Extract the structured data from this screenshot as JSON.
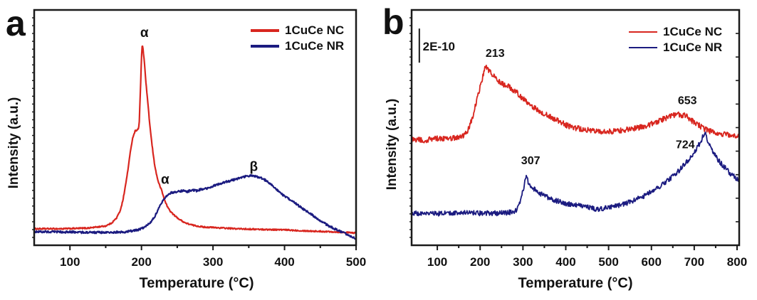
{
  "figure": {
    "background": "#ffffff",
    "text_color": "#111111",
    "axis_color": "#1a1a1a"
  },
  "chart_data": [
    {
      "type": "line",
      "panel_label": "a",
      "xlabel": "Temperature (°C)",
      "ylabel": "Intensity (a.u.)",
      "xlim": [
        50,
        500
      ],
      "x_major_ticks": [
        100,
        200,
        300,
        400,
        500
      ],
      "x_minor_ticks": [
        150,
        250,
        350,
        450
      ],
      "grid": false,
      "legend_position": "top-right",
      "legend": {
        "line_width": 4,
        "entries": [
          {
            "label": "1CuCe NC",
            "color": "#d8261f"
          },
          {
            "label": "1CuCe NR",
            "color": "#1b1b80"
          }
        ]
      },
      "annotations": [
        {
          "text": "α",
          "x": 204,
          "v": 0.885,
          "size": 19
        },
        {
          "text": "α",
          "x": 233,
          "v": 0.262,
          "size": 19
        },
        {
          "text": "β",
          "x": 357,
          "v": 0.315,
          "size": 19
        }
      ],
      "series": [
        {
          "name": "1CuCe NC",
          "color": "#d8261f",
          "width": 2.2,
          "noise": 0.0028,
          "points": [
            [
              50,
              0.07
            ],
            [
              90,
              0.07
            ],
            [
              125,
              0.073
            ],
            [
              150,
              0.082
            ],
            [
              158,
              0.094
            ],
            [
              165,
              0.115
            ],
            [
              170,
              0.145
            ],
            [
              174,
              0.19
            ],
            [
              178,
              0.26
            ],
            [
              182,
              0.34
            ],
            [
              185,
              0.41
            ],
            [
              188,
              0.46
            ],
            [
              191,
              0.485
            ],
            [
              196,
              0.495
            ],
            [
              197,
              0.53
            ],
            [
              199,
              0.7
            ],
            [
              200,
              0.8
            ],
            [
              201,
              0.852
            ],
            [
              202,
              0.84
            ],
            [
              204,
              0.78
            ],
            [
              206,
              0.7
            ],
            [
              209,
              0.6
            ],
            [
              212,
              0.5
            ],
            [
              215,
              0.42
            ],
            [
              218,
              0.35
            ],
            [
              221,
              0.3
            ],
            [
              224,
              0.265
            ],
            [
              228,
              0.235
            ],
            [
              232,
              0.195
            ],
            [
              236,
              0.165
            ],
            [
              241,
              0.142
            ],
            [
              247,
              0.124
            ],
            [
              254,
              0.108
            ],
            [
              262,
              0.094
            ],
            [
              272,
              0.085
            ],
            [
              285,
              0.078
            ],
            [
              300,
              0.0755
            ],
            [
              330,
              0.0705
            ],
            [
              365,
              0.0675
            ],
            [
              400,
              0.0655
            ],
            [
              435,
              0.0605
            ],
            [
              470,
              0.057
            ],
            [
              500,
              0.052
            ]
          ]
        },
        {
          "name": "1CuCe NR",
          "color": "#1b1b80",
          "width": 2.2,
          "noise": 0.0045,
          "points": [
            [
              50,
              0.058
            ],
            [
              100,
              0.056
            ],
            [
              150,
              0.054
            ],
            [
              175,
              0.056
            ],
            [
              190,
              0.062
            ],
            [
              200,
              0.07
            ],
            [
              207,
              0.082
            ],
            [
              213,
              0.1
            ],
            [
              219,
              0.125
            ],
            [
              224,
              0.155
            ],
            [
              229,
              0.185
            ],
            [
              234,
              0.208
            ],
            [
              239,
              0.22
            ],
            [
              245,
              0.226
            ],
            [
              252,
              0.228
            ],
            [
              258,
              0.232
            ],
            [
              264,
              0.228
            ],
            [
              270,
              0.234
            ],
            [
              277,
              0.232
            ],
            [
              284,
              0.238
            ],
            [
              291,
              0.24
            ],
            [
              298,
              0.248
            ],
            [
              306,
              0.258
            ],
            [
              314,
              0.266
            ],
            [
              322,
              0.272
            ],
            [
              330,
              0.279
            ],
            [
              338,
              0.287
            ],
            [
              346,
              0.293
            ],
            [
              353,
              0.296
            ],
            [
              360,
              0.293
            ],
            [
              368,
              0.285
            ],
            [
              376,
              0.272
            ],
            [
              384,
              0.252
            ],
            [
              391,
              0.232
            ],
            [
              398,
              0.212
            ],
            [
              406,
              0.196
            ],
            [
              414,
              0.18
            ],
            [
              422,
              0.163
            ],
            [
              430,
              0.147
            ],
            [
              438,
              0.13
            ],
            [
              446,
              0.112
            ],
            [
              454,
              0.097
            ],
            [
              462,
              0.082
            ],
            [
              470,
              0.07
            ],
            [
              478,
              0.058
            ],
            [
              486,
              0.047
            ],
            [
              493,
              0.037
            ],
            [
              500,
              0.026
            ]
          ]
        }
      ]
    },
    {
      "type": "line",
      "panel_label": "b",
      "xlabel": "Temperature (°C)",
      "ylabel": "Intensity (a.u.)",
      "xlim": [
        40,
        805
      ],
      "x_major_ticks": [
        100,
        200,
        300,
        400,
        500,
        600,
        700,
        800
      ],
      "x_minor_ticks": [
        150,
        250,
        350,
        450,
        550,
        650,
        750
      ],
      "grid": false,
      "legend_position": "top-right",
      "scale_bar": {
        "label": "2E-10",
        "x": 58,
        "v0": 0.776,
        "v1": 0.921,
        "text_x": 66,
        "text_v": 0.828
      },
      "legend": {
        "line_width": 2.5,
        "entries": [
          {
            "label": "1CuCe NC",
            "color": "#d8261f"
          },
          {
            "label": "1CuCe NR",
            "color": "#1b1b80"
          }
        ]
      },
      "annotations": [
        {
          "text": "213",
          "x": 235,
          "v": 0.8,
          "size": 16
        },
        {
          "text": "307",
          "x": 318,
          "v": 0.345,
          "size": 16
        },
        {
          "text": "653",
          "x": 684,
          "v": 0.6,
          "size": 16
        },
        {
          "text": "724",
          "x": 679,
          "v": 0.412,
          "size": 16
        }
      ],
      "series": [
        {
          "name": "1CuCe NC",
          "color": "#d8261f",
          "width": 1.8,
          "noise": 0.0115,
          "points": [
            [
              40,
              0.45
            ],
            [
              70,
              0.447
            ],
            [
              100,
              0.453
            ],
            [
              130,
              0.453
            ],
            [
              150,
              0.459
            ],
            [
              162,
              0.468
            ],
            [
              172,
              0.49
            ],
            [
              180,
              0.53
            ],
            [
              190,
              0.6
            ],
            [
              198,
              0.66
            ],
            [
              205,
              0.71
            ],
            [
              210,
              0.745
            ],
            [
              213,
              0.761
            ],
            [
              218,
              0.75
            ],
            [
              224,
              0.735
            ],
            [
              231,
              0.72
            ],
            [
              238,
              0.706
            ],
            [
              247,
              0.69
            ],
            [
              257,
              0.68
            ],
            [
              267,
              0.674
            ],
            [
              277,
              0.66
            ],
            [
              288,
              0.645
            ],
            [
              298,
              0.625
            ],
            [
              308,
              0.613
            ],
            [
              318,
              0.596
            ],
            [
              328,
              0.583
            ],
            [
              340,
              0.568
            ],
            [
              352,
              0.556
            ],
            [
              366,
              0.543
            ],
            [
              382,
              0.53
            ],
            [
              400,
              0.511
            ],
            [
              420,
              0.499
            ],
            [
              440,
              0.493
            ],
            [
              462,
              0.487
            ],
            [
              485,
              0.484
            ],
            [
              505,
              0.483
            ],
            [
              525,
              0.487
            ],
            [
              548,
              0.493
            ],
            [
              570,
              0.5
            ],
            [
              592,
              0.511
            ],
            [
              612,
              0.524
            ],
            [
              630,
              0.538
            ],
            [
              645,
              0.55
            ],
            [
              658,
              0.556
            ],
            [
              670,
              0.553
            ],
            [
              682,
              0.55
            ],
            [
              695,
              0.529
            ],
            [
              710,
              0.511
            ],
            [
              725,
              0.493
            ],
            [
              742,
              0.481
            ],
            [
              760,
              0.475
            ],
            [
              780,
              0.469
            ],
            [
              805,
              0.462
            ]
          ]
        },
        {
          "name": "1CuCe NR",
          "color": "#1b1b80",
          "width": 1.8,
          "noise": 0.0105,
          "points": [
            [
              40,
              0.136
            ],
            [
              80,
              0.133
            ],
            [
              120,
              0.136
            ],
            [
              160,
              0.139
            ],
            [
              200,
              0.136
            ],
            [
              240,
              0.136
            ],
            [
              265,
              0.139
            ],
            [
              278,
              0.142
            ],
            [
              286,
              0.151
            ],
            [
              292,
              0.175
            ],
            [
              297,
              0.211
            ],
            [
              302,
              0.248
            ],
            [
              307,
              0.293
            ],
            [
              311,
              0.275
            ],
            [
              316,
              0.257
            ],
            [
              322,
              0.248
            ],
            [
              330,
              0.232
            ],
            [
              340,
              0.22
            ],
            [
              352,
              0.208
            ],
            [
              366,
              0.196
            ],
            [
              382,
              0.187
            ],
            [
              398,
              0.178
            ],
            [
              416,
              0.172
            ],
            [
              436,
              0.166
            ],
            [
              456,
              0.16
            ],
            [
              472,
              0.154
            ],
            [
              490,
              0.157
            ],
            [
              510,
              0.163
            ],
            [
              530,
              0.172
            ],
            [
              550,
              0.184
            ],
            [
              570,
              0.199
            ],
            [
              590,
              0.217
            ],
            [
              610,
              0.238
            ],
            [
              630,
              0.263
            ],
            [
              648,
              0.29
            ],
            [
              664,
              0.317
            ],
            [
              678,
              0.344
            ],
            [
              690,
              0.371
            ],
            [
              700,
              0.395
            ],
            [
              708,
              0.42
            ],
            [
              716,
              0.444
            ],
            [
              724,
              0.48
            ],
            [
              728,
              0.462
            ],
            [
              734,
              0.432
            ],
            [
              742,
              0.402
            ],
            [
              750,
              0.378
            ],
            [
              760,
              0.353
            ],
            [
              772,
              0.329
            ],
            [
              786,
              0.302
            ],
            [
              800,
              0.281
            ],
            [
              805,
              0.278
            ]
          ]
        }
      ]
    }
  ]
}
